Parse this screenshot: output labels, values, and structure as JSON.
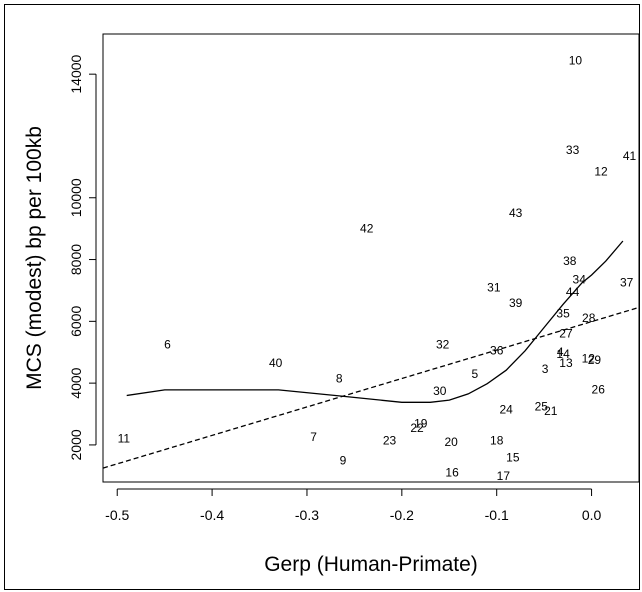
{
  "chart_data": {
    "type": "scatter",
    "xlabel": "Gerp (Human-Primate)",
    "ylabel": "MCS (modest) bp per 100kb",
    "xlim": [
      -0.515,
      0.05
    ],
    "ylim": [
      800,
      15300
    ],
    "x_ticks": [
      -0.5,
      -0.4,
      -0.3,
      -0.2,
      -0.1,
      0.0
    ],
    "x_tick_labels": [
      "-0.5",
      "-0.4",
      "-0.3",
      "-0.2",
      "-0.1",
      "0.0"
    ],
    "y_ticks": [
      2000,
      4000,
      6000,
      8000,
      10000,
      14000
    ],
    "y_tick_labels": [
      "2000",
      "4000",
      "6000",
      "8000",
      "10000",
      "14000"
    ],
    "grid": false,
    "legend": "none",
    "points": [
      {
        "label": "1",
        "x": -0.007,
        "y": 4800
      },
      {
        "label": "2",
        "x": 0.0,
        "y": 4800
      },
      {
        "label": "3",
        "x": -0.049,
        "y": 4450
      },
      {
        "label": "4",
        "x": -0.033,
        "y": 5000
      },
      {
        "label": "5",
        "x": -0.123,
        "y": 4300
      },
      {
        "label": "6",
        "x": -0.447,
        "y": 5250
      },
      {
        "label": "7",
        "x": -0.293,
        "y": 2250
      },
      {
        "label": "8",
        "x": -0.266,
        "y": 4150
      },
      {
        "label": "9",
        "x": -0.262,
        "y": 1500
      },
      {
        "label": "10",
        "x": -0.017,
        "y": 14450
      },
      {
        "label": "11",
        "x": -0.493,
        "y": 2200
      },
      {
        "label": "12",
        "x": 0.01,
        "y": 10850
      },
      {
        "label": "13",
        "x": -0.027,
        "y": 4650
      },
      {
        "label": "14",
        "x": -0.03,
        "y": 4950
      },
      {
        "label": "15",
        "x": -0.083,
        "y": 1600
      },
      {
        "label": "16",
        "x": -0.147,
        "y": 1100
      },
      {
        "label": "17",
        "x": -0.093,
        "y": 1000
      },
      {
        "label": "18",
        "x": -0.1,
        "y": 2150
      },
      {
        "label": "19",
        "x": -0.18,
        "y": 2700
      },
      {
        "label": "20",
        "x": -0.148,
        "y": 2100
      },
      {
        "label": "21",
        "x": -0.043,
        "y": 3100
      },
      {
        "label": "22",
        "x": -0.184,
        "y": 2550
      },
      {
        "label": "23",
        "x": -0.213,
        "y": 2150
      },
      {
        "label": "24",
        "x": -0.09,
        "y": 3150
      },
      {
        "label": "25",
        "x": -0.053,
        "y": 3250
      },
      {
        "label": "26",
        "x": 0.007,
        "y": 3800
      },
      {
        "label": "27",
        "x": -0.027,
        "y": 5600
      },
      {
        "label": "28",
        "x": -0.003,
        "y": 6100
      },
      {
        "label": "29",
        "x": 0.003,
        "y": 4750
      },
      {
        "label": "30",
        "x": -0.16,
        "y": 3750
      },
      {
        "label": "31",
        "x": -0.103,
        "y": 7100
      },
      {
        "label": "32",
        "x": -0.157,
        "y": 5250
      },
      {
        "label": "33",
        "x": -0.02,
        "y": 11550
      },
      {
        "label": "34",
        "x": -0.013,
        "y": 7350
      },
      {
        "label": "35",
        "x": -0.03,
        "y": 6250
      },
      {
        "label": "36",
        "x": -0.1,
        "y": 5050
      },
      {
        "label": "37",
        "x": 0.037,
        "y": 7250
      },
      {
        "label": "38",
        "x": -0.023,
        "y": 7950
      },
      {
        "label": "39",
        "x": -0.08,
        "y": 6600
      },
      {
        "label": "40",
        "x": -0.333,
        "y": 4650
      },
      {
        "label": "41",
        "x": 0.04,
        "y": 11350
      },
      {
        "label": "42",
        "x": -0.237,
        "y": 9000
      },
      {
        "label": "43",
        "x": -0.08,
        "y": 9500
      },
      {
        "label": "44",
        "x": -0.02,
        "y": 6950
      }
    ],
    "lines": [
      {
        "style": "solid",
        "x": [
          -0.49,
          -0.45,
          -0.4,
          -0.33,
          -0.27,
          -0.2,
          -0.17,
          -0.15,
          -0.13,
          -0.11,
          -0.09,
          -0.07,
          -0.05,
          -0.03,
          -0.01,
          0.0,
          0.015,
          0.033
        ],
        "y": [
          3600,
          3780,
          3780,
          3780,
          3600,
          3380,
          3380,
          3450,
          3650,
          3980,
          4420,
          5050,
          5800,
          6550,
          7250,
          7500,
          7950,
          8600
        ]
      },
      {
        "style": "dashed",
        "x": [
          -0.515,
          0.05
        ],
        "y": [
          1250,
          6450
        ]
      }
    ]
  }
}
